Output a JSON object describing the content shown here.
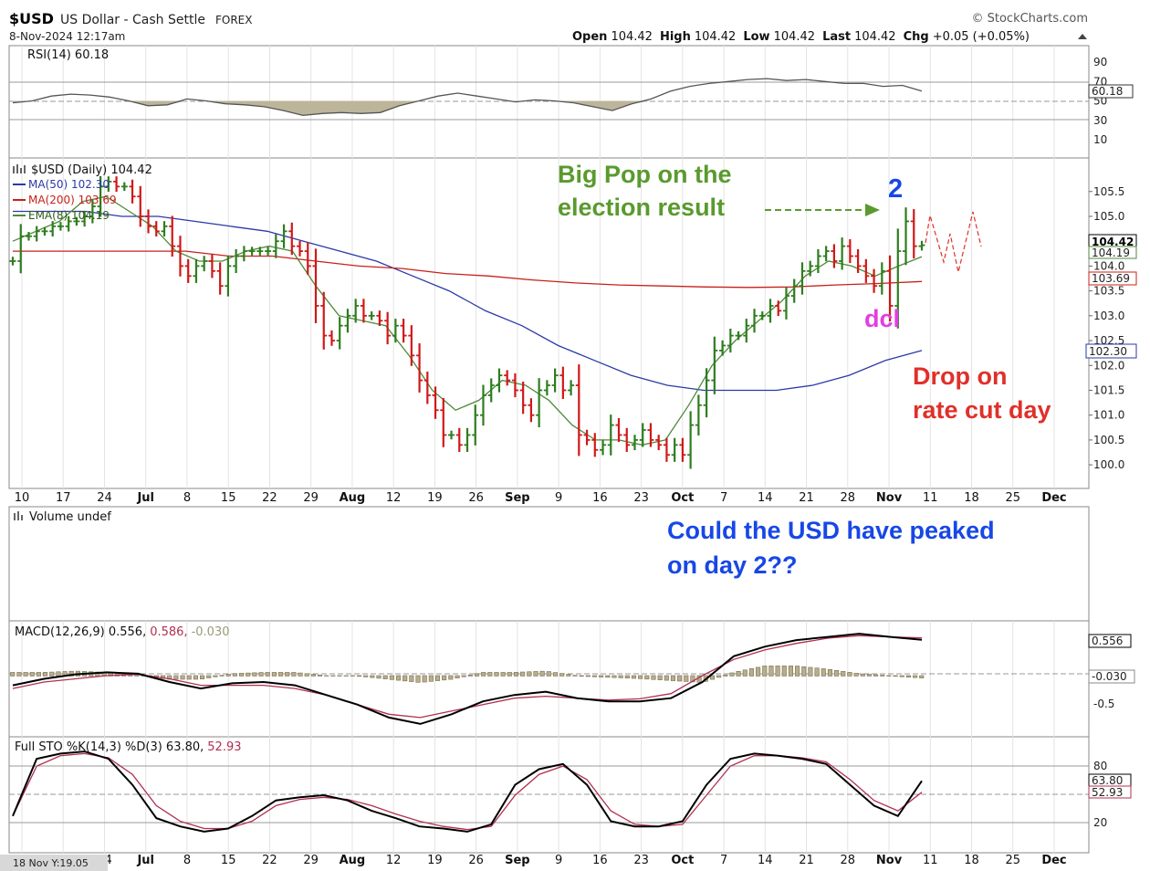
{
  "header": {
    "symbol": "$USD",
    "name": "US Dollar - Cash Settle",
    "exchange": "FOREX",
    "brand": "© StockCharts.com",
    "date": "8-Nov-2024 12:17am",
    "open_label": "Open",
    "open": "104.42",
    "high_label": "High",
    "high": "104.42",
    "low_label": "Low",
    "low": "104.42",
    "last_label": "Last",
    "last": "104.42",
    "chg_label": "Chg",
    "chg": "+0.05 (+0.05%)"
  },
  "panels": {
    "rsi": {
      "label": "RSI(14) 60.18",
      "value_badge": "60.18",
      "ticks": [
        "90",
        "70",
        "50",
        "30",
        "10"
      ]
    },
    "price": {
      "legend": [
        "$USD (Daily) 104.42",
        "MA(50) 102.30",
        "MA(200) 103.69",
        "EMA(8) 104.19"
      ],
      "badges": [
        "104.42",
        "104.19",
        "103.69",
        "102.30"
      ],
      "ticks": [
        "105.5",
        "105.0",
        "104.0",
        "103.5",
        "103.0",
        "102.5",
        "102.0",
        "101.5",
        "101.0",
        "100.5",
        "100.0"
      ]
    },
    "volume": {
      "label": "Volume undef"
    },
    "macd": {
      "label_a": "MACD(12,26,9) 0.556,",
      "label_b": "0.586,",
      "label_c": "-0.030",
      "badges": [
        "0.556",
        "-0.030"
      ],
      "ticks": [
        "-0.5"
      ]
    },
    "sto": {
      "label_a": "Full STO %K(14,3) %D(3) 63.80,",
      "label_b": "52.93",
      "badges": [
        "63.80",
        "52.93"
      ],
      "ticks": [
        "80",
        "20"
      ]
    }
  },
  "xaxis_labels": [
    "10",
    "17",
    "24",
    "Jul",
    "8",
    "15",
    "22",
    "29",
    "Aug",
    "12",
    "19",
    "26",
    "Sep",
    "9",
    "16",
    "23",
    "Oct",
    "7",
    "14",
    "21",
    "28",
    "Nov",
    "11",
    "18",
    "25",
    "Dec"
  ],
  "footer_note": "18 Nov Y:19.05",
  "annotations": {
    "big_pop_1": "Big Pop on the",
    "big_pop_2": "election result",
    "two": "2",
    "dcl": "dcl",
    "drop_1": "Drop on",
    "drop_2": "rate cut day",
    "question_1": "Could the USD have peaked",
    "question_2": "on day 2??"
  },
  "colors": {
    "up": "#2e7d1f",
    "down": "#d01818",
    "ma50": "#2b3aa6",
    "ma200": "#c8201a",
    "ema8": "#4f8a3a",
    "ann_green": "#5a9a2e",
    "ann_blue": "#1747e6",
    "ann_red": "#e0302a",
    "ann_magenta": "#e040e0"
  },
  "chart_data": {
    "type": "line",
    "title": "$USD US Dollar - Cash Settle FOREX",
    "xlabel": "",
    "ylabel": "",
    "ylim": [
      99.8,
      105.9
    ],
    "rsi_ylim": [
      0,
      100
    ],
    "sto_ylim": [
      0,
      100
    ],
    "macd_ylim": [
      -0.85,
      0.75
    ],
    "dates_start": "2024-06-10",
    "ohlc_close": [
      104.1,
      104.6,
      104.6,
      104.7,
      104.7,
      104.8,
      104.8,
      104.9,
      104.9,
      105.0,
      105.2,
      105.6,
      105.7,
      105.6,
      105.6,
      105.4,
      105.0,
      104.8,
      104.7,
      104.8,
      104.4,
      104.0,
      103.8,
      104.0,
      104.1,
      103.9,
      103.6,
      104.0,
      104.2,
      104.3,
      104.3,
      104.3,
      104.3,
      104.5,
      104.7,
      104.4,
      104.3,
      104.0,
      103.2,
      102.6,
      102.5,
      102.8,
      103.0,
      103.2,
      103.0,
      103.0,
      102.9,
      102.6,
      102.8,
      102.6,
      102.2,
      101.7,
      101.4,
      101.1,
      100.6,
      100.6,
      100.4,
      100.6,
      101.0,
      101.4,
      101.6,
      101.8,
      101.7,
      101.5,
      101.2,
      101.0,
      101.5,
      101.6,
      101.8,
      101.5,
      101.6,
      100.6,
      100.5,
      100.3,
      100.4,
      100.8,
      100.6,
      100.4,
      100.5,
      100.7,
      100.5,
      100.4,
      100.2,
      100.4,
      100.2,
      100.8,
      101.2,
      101.7,
      102.3,
      102.4,
      102.6,
      102.6,
      102.8,
      103.0,
      103.0,
      103.2,
      103.1,
      103.4,
      103.6,
      103.9,
      104.0,
      104.2,
      104.3,
      104.1,
      104.4,
      104.2,
      104.0,
      103.8,
      103.6,
      103.9,
      103.2,
      104.3,
      104.9,
      104.4,
      104.42
    ],
    "series": [
      {
        "name": "$USD (Daily) 104.42",
        "values": [
          104.1,
          104.6,
          104.6,
          104.7,
          104.7,
          104.8,
          104.8,
          104.9,
          104.9,
          105.0,
          105.2,
          105.6,
          105.7,
          105.6,
          105.6,
          105.4,
          105.0,
          104.8,
          104.7,
          104.8,
          104.4,
          104.0,
          103.8,
          104.0,
          104.1,
          103.9,
          103.6,
          104.0,
          104.2,
          104.3,
          104.3,
          104.3,
          104.3,
          104.5,
          104.7,
          104.4,
          104.3,
          104.0,
          103.2,
          102.6,
          102.5,
          102.8,
          103.0,
          103.2,
          103.0,
          103.0,
          102.9,
          102.6,
          102.8,
          102.6,
          102.2,
          101.7,
          101.4,
          101.1,
          100.6,
          100.6,
          100.4,
          100.6,
          101.0,
          101.4,
          101.6,
          101.8,
          101.7,
          101.5,
          101.2,
          101.0,
          101.5,
          101.6,
          101.8,
          101.5,
          101.6,
          100.6,
          100.5,
          100.3,
          100.4,
          100.8,
          100.6,
          100.4,
          100.5,
          100.7,
          100.5,
          100.4,
          100.2,
          100.4,
          100.2,
          100.8,
          101.2,
          101.7,
          102.3,
          102.4,
          102.6,
          102.6,
          102.8,
          103.0,
          103.0,
          103.2,
          103.1,
          103.4,
          103.6,
          103.9,
          104.0,
          104.2,
          104.3,
          104.1,
          104.4,
          104.2,
          104.0,
          103.8,
          103.6,
          103.9,
          103.2,
          104.3,
          104.9,
          104.4,
          104.42
        ]
      },
      {
        "name": "MA(50) 102.30",
        "values": [
          105.1,
          105.1,
          105.1,
          105.0,
          105.0,
          104.9,
          104.8,
          104.7,
          104.5,
          104.3,
          104.1,
          103.8,
          103.5,
          103.1,
          102.8,
          102.4,
          102.1,
          101.8,
          101.6,
          101.5,
          101.5,
          101.5,
          101.6,
          101.8,
          102.1,
          102.3
        ]
      },
      {
        "name": "MA(200) 103.69",
        "values": [
          104.3,
          104.3,
          104.3,
          104.3,
          104.3,
          104.2,
          104.2,
          104.1,
          104.0,
          103.95,
          103.85,
          103.8,
          103.72,
          103.66,
          103.62,
          103.6,
          103.58,
          103.57,
          103.58,
          103.62,
          103.65,
          103.69
        ]
      },
      {
        "name": "EMA(8) 104.19",
        "values": [
          104.5,
          104.7,
          104.9,
          105.3,
          105.4,
          105.1,
          104.8,
          104.3,
          104.1,
          104.1,
          104.3,
          104.4,
          104.3,
          103.6,
          103.0,
          102.9,
          102.8,
          102.2,
          101.5,
          101.1,
          101.3,
          101.7,
          101.6,
          101.3,
          100.8,
          100.5,
          100.5,
          100.4,
          100.5,
          101.2,
          102.0,
          102.5,
          102.9,
          103.3,
          103.8,
          104.1,
          104.0,
          103.8,
          104.0,
          104.19
        ]
      }
    ],
    "rsi": [
      48,
      50,
      55,
      57,
      56,
      54,
      50,
      45,
      46,
      52,
      50,
      47,
      46,
      44,
      40,
      35,
      37,
      38,
      37,
      38,
      45,
      50,
      55,
      58,
      55,
      52,
      49,
      51,
      50,
      48,
      44,
      40,
      47,
      52,
      60,
      65,
      68,
      70,
      72,
      73,
      71,
      72,
      70,
      68,
      68,
      65,
      66,
      60.18
    ],
    "macd_line": [
      -0.15,
      -0.05,
      0.02,
      0.05,
      0.03,
      -0.1,
      -0.2,
      -0.12,
      -0.1,
      -0.15,
      -0.3,
      -0.45,
      -0.65,
      -0.75,
      -0.6,
      -0.4,
      -0.3,
      -0.25,
      -0.35,
      -0.4,
      -0.4,
      -0.35,
      -0.1,
      0.3,
      0.45,
      0.55,
      0.6,
      0.65,
      0.6,
      0.556
    ],
    "macd_signal": [
      -0.2,
      -0.1,
      -0.05,
      0.0,
      0.02,
      -0.05,
      -0.15,
      -0.15,
      -0.15,
      -0.2,
      -0.3,
      -0.45,
      -0.6,
      -0.65,
      -0.55,
      -0.45,
      -0.35,
      -0.32,
      -0.35,
      -0.38,
      -0.36,
      -0.28,
      0.0,
      0.25,
      0.4,
      0.5,
      0.58,
      0.62,
      0.6,
      0.586
    ],
    "macd_hist": [
      0.05,
      0.05,
      0.07,
      0.05,
      0.01,
      -0.05,
      -0.05,
      0.03,
      0.05,
      0.05,
      0.0,
      0.0,
      -0.05,
      -0.1,
      -0.05,
      0.05,
      0.05,
      0.07,
      0.0,
      -0.02,
      -0.04,
      -0.07,
      -0.1,
      0.05,
      0.15,
      0.15,
      0.1,
      0.03,
      0.0,
      -0.03
    ],
    "sto_k": [
      30,
      85,
      90,
      92,
      85,
      60,
      28,
      20,
      15,
      18,
      30,
      45,
      48,
      50,
      45,
      35,
      28,
      20,
      18,
      15,
      22,
      60,
      75,
      80,
      60,
      25,
      20,
      20,
      25,
      60,
      85,
      90,
      88,
      85,
      80,
      60,
      40,
      30,
      63.8
    ],
    "sto_d": [
      30,
      78,
      88,
      90,
      86,
      70,
      40,
      25,
      18,
      18,
      25,
      40,
      46,
      48,
      46,
      40,
      32,
      25,
      20,
      17,
      20,
      50,
      70,
      78,
      65,
      35,
      22,
      20,
      22,
      50,
      78,
      88,
      88,
      86,
      82,
      65,
      45,
      35,
      52.93
    ]
  }
}
